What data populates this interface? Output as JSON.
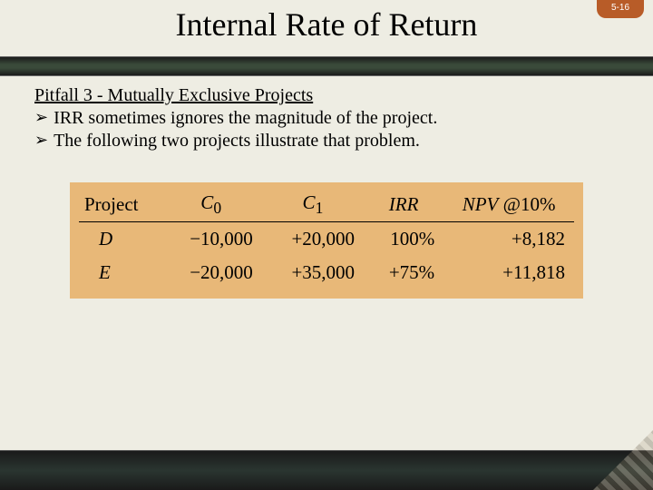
{
  "header": {
    "title": "Internal Rate of Return",
    "page_number": "5-16",
    "page_tab_bg": "#b85c28"
  },
  "content": {
    "subtitle": "Pitfall 3 - Mutually Exclusive Projects",
    "bullets": [
      "IRR sometimes ignores the magnitude of the project.",
      "The following two projects illustrate that problem."
    ]
  },
  "table": {
    "background_color": "#e8b878",
    "columns": [
      "Project",
      "C₀",
      "C₁",
      "IRR",
      "NPV @10%"
    ],
    "rows": [
      {
        "project": "D",
        "c0": "−10,000",
        "c1": "+20,000",
        "irr": "100%",
        "npv": "+8,182"
      },
      {
        "project": "E",
        "c0": "−20,000",
        "c1": "+35,000",
        "irr": "+75%",
        "npv": "+11,818"
      }
    ]
  },
  "styling": {
    "slide_bg": "#eeede3",
    "title_fontsize": 36,
    "body_fontsize": 20,
    "table_fontsize": 21,
    "bar_gradient": [
      "#1a1a1a",
      "#3a4a3a"
    ]
  }
}
